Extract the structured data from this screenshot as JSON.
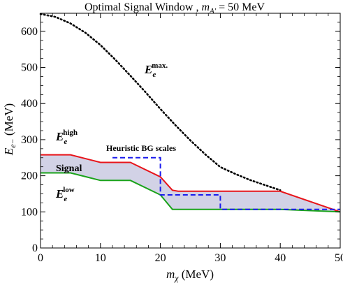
{
  "chart_data": {
    "type": "line",
    "title": {
      "prefix": "Optimal Signal Window ,  ",
      "m_sym": "m",
      "m_sub": "A′",
      "suffix": " = 50 MeV"
    },
    "xlabel": {
      "sym": "m",
      "sub": "χ",
      "unit": " (MeV)"
    },
    "ylabel": {
      "sym": "E",
      "sub": "e−",
      "unit": " (MeV)"
    },
    "xlim": [
      0,
      50
    ],
    "ylim": [
      0,
      650
    ],
    "xticks": [
      0,
      10,
      20,
      30,
      40,
      50
    ],
    "yticks": [
      0,
      100,
      200,
      300,
      400,
      500,
      600
    ],
    "grid": false,
    "colors": {
      "high": "#e8141a",
      "low": "#1aa31a",
      "signal_fill": "#d2d2e6",
      "bg": "#1a1aee",
      "emax": "#000000"
    },
    "series": {
      "emax_curve": {
        "x": [
          0,
          2.5,
          5,
          7.5,
          10,
          12.5,
          15,
          17.5,
          20,
          22.5,
          25,
          27.5,
          30,
          32.5,
          35,
          37.5,
          40
        ],
        "y": [
          648,
          640,
          622,
          596,
          562,
          521,
          477,
          432,
          385,
          340,
          298,
          259,
          224,
          205,
          188,
          174,
          160
        ]
      },
      "e_high": {
        "x": [
          0,
          5,
          10,
          15,
          20,
          22,
          23,
          30,
          40,
          50
        ],
        "y": [
          258,
          258,
          237,
          237,
          197,
          160,
          157,
          157,
          157,
          100
        ]
      },
      "e_low": {
        "x": [
          0,
          5,
          10,
          15,
          20,
          22,
          23,
          30,
          40,
          50
        ],
        "y": [
          208,
          208,
          187,
          187,
          147,
          107,
          107,
          107,
          107,
          100
        ]
      },
      "heuristic_bg": {
        "x": [
          12,
          20,
          20,
          30,
          30,
          50
        ],
        "y": [
          250,
          250,
          147,
          147,
          107,
          107
        ]
      }
    },
    "annotations": {
      "emax": {
        "sym": "E",
        "sub": "e",
        "sup": "max."
      },
      "ehigh": {
        "sym": "E",
        "sub": "e",
        "sup": "high"
      },
      "elow": {
        "sym": "E",
        "sub": "e",
        "sup": "low"
      },
      "signal": "Signal",
      "bg": "Heuristic BG scales"
    }
  }
}
